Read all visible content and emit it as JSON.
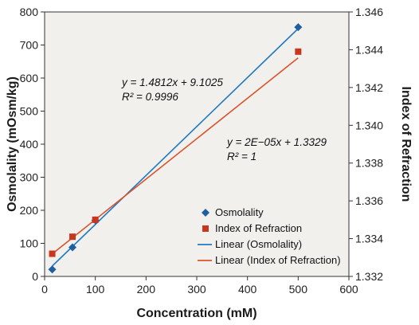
{
  "chart_data": {
    "type": "scatter",
    "xlabel": "Concentration (mM)",
    "ylabel": "Osmolality (mOsm/kg)",
    "y2label": "Index of Refraction",
    "xlim": [
      0,
      600
    ],
    "ylim": [
      0,
      800
    ],
    "y2lim": [
      1.332,
      1.346
    ],
    "x_ticks": [
      "0",
      "100",
      "200",
      "300",
      "400",
      "500",
      "600"
    ],
    "y_ticks": [
      "0",
      "100",
      "200",
      "300",
      "400",
      "500",
      "600",
      "700",
      "800"
    ],
    "y2_ticks": [
      "1.332",
      "1.334",
      "1.336",
      "1.338",
      "1.340",
      "1.342",
      "1.344",
      "1.346"
    ],
    "grid": false,
    "legend_position": "bottom-right",
    "series": [
      {
        "name": "Osmolality",
        "axis": "left",
        "marker": "diamond",
        "color": "#1f5fa0",
        "points": [
          [
            15,
            21
          ],
          [
            55,
            88
          ],
          [
            100,
            170
          ],
          [
            500,
            754
          ]
        ]
      },
      {
        "name": "Index of Refraction",
        "axis": "right",
        "marker": "square",
        "color": "#c8361d",
        "points": [
          [
            15,
            1.3332
          ],
          [
            55,
            1.3341
          ],
          [
            100,
            1.335
          ],
          [
            500,
            1.3439
          ]
        ]
      }
    ],
    "trendlines": [
      {
        "name": "Linear (Osmolality)",
        "axis": "left",
        "color": "#1f7ac0",
        "slope": 1.4812,
        "intercept": 9.1025,
        "x_range": [
          15,
          500
        ],
        "equation": "y = 1.4812x + 9.1025",
        "r2": "R² = 0.9996"
      },
      {
        "name": "Linear (Index of Refraction)",
        "axis": "right",
        "color": "#d9542b",
        "slope": 2.14e-05,
        "intercept": 1.33287,
        "x_range": [
          15,
          500
        ],
        "equation": "y = 2E−05x + 1.3329",
        "r2": "R² = 1"
      }
    ]
  }
}
